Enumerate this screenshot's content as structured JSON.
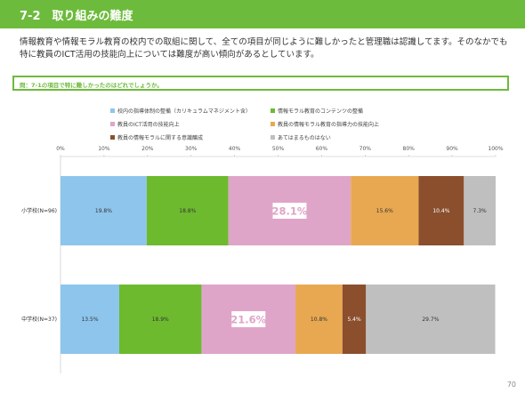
{
  "header": {
    "title": "7-2　取り組みの難度"
  },
  "description": "情報教育や情報モラル教育の校内での取組に関して、全ての項目が同じように難しかったと管理職は認識してます。そのなかでも特に教員のICT活用の技能向上については難度が高い傾向があるとしています。",
  "question": "問：7-1の項目で特に難しかったのはどれでしょうか。",
  "page_number": "70",
  "colors": {
    "header": "#6dbb3c"
  },
  "chart_data": {
    "type": "bar",
    "orientation": "horizontal-stacked-100",
    "xlim": [
      0,
      100
    ],
    "x_ticks": [
      "0%",
      "10%",
      "20%",
      "30%",
      "40%",
      "50%",
      "60%",
      "70%",
      "80%",
      "90%",
      "100%"
    ],
    "categories": [
      "小学校(N=96)",
      "中学校(N=37)"
    ],
    "series": [
      {
        "name": "校内の指導体制の整備（カリキュラムマネジメント含）",
        "color": "#8ec5ec",
        "values": [
          19.8,
          13.5
        ],
        "labels": [
          "19.8%",
          "13.5%"
        ]
      },
      {
        "name": "情報モラル教育のコンテンツの整備",
        "color": "#6dba2f",
        "values": [
          18.8,
          18.9
        ],
        "labels": [
          "18.8%",
          "18.9%"
        ]
      },
      {
        "name": "教員のICT活用の技能向上",
        "color": "#dfa5c8",
        "values": [
          28.1,
          21.6
        ],
        "labels": [
          "28.1%",
          "21.6%"
        ],
        "highlight": true
      },
      {
        "name": "教員の情報モラル教育の指導力の技能向上",
        "color": "#e8a851",
        "values": [
          15.6,
          10.8
        ],
        "labels": [
          "15.6%",
          "10.8%"
        ]
      },
      {
        "name": "教員の情報モラルに関する意識醸成",
        "color": "#8b4f2e",
        "values": [
          10.4,
          5.4
        ],
        "labels": [
          "10.4%",
          "5.4%"
        ]
      },
      {
        "name": "あてはまるものはない",
        "color": "#bfbfbf",
        "values": [
          7.3,
          29.7
        ],
        "labels": [
          "7.3%",
          "29.7%"
        ]
      }
    ],
    "grid": false,
    "legend_position": "top"
  }
}
